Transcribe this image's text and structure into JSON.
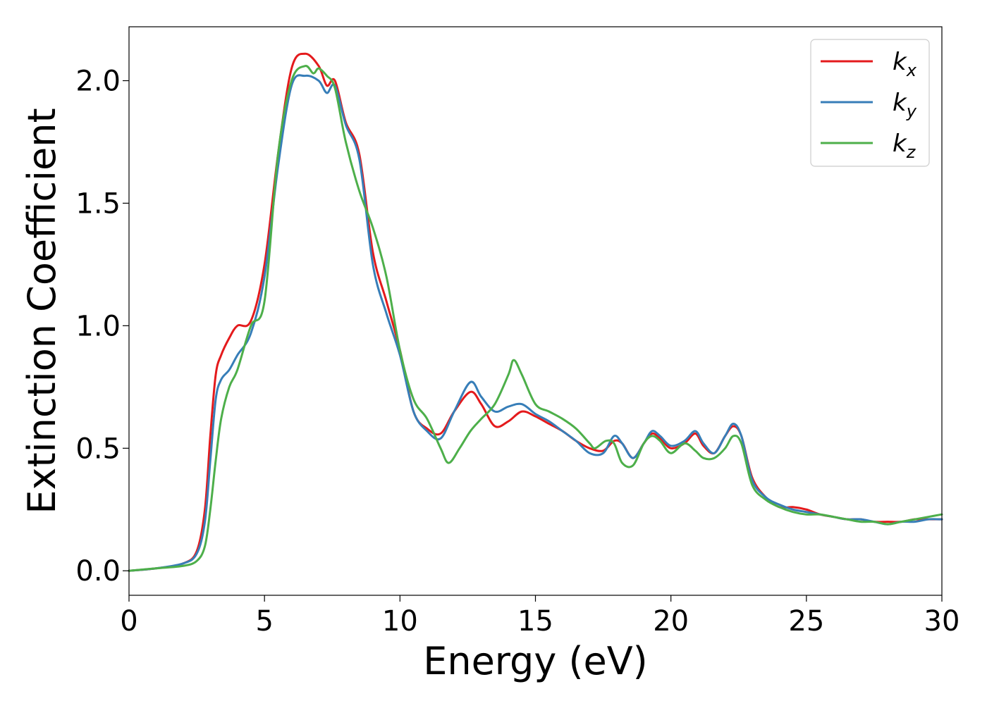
{
  "chart_data": {
    "type": "line",
    "title": "",
    "xlabel": "Energy (eV)",
    "ylabel": "Extinction Coefficient",
    "xlim": [
      0,
      30
    ],
    "ylim": [
      -0.1,
      2.22
    ],
    "xticks": [
      0,
      5,
      10,
      15,
      20,
      25,
      30
    ],
    "xtick_labels": [
      "0",
      "5",
      "10",
      "15",
      "20",
      "25",
      "30"
    ],
    "yticks": [
      0.0,
      0.5,
      1.0,
      1.5,
      2.0
    ],
    "ytick_labels": [
      "0.0",
      "0.5",
      "1.0",
      "1.5",
      "2.0"
    ],
    "grid": false,
    "legend_position": "top-right",
    "series": [
      {
        "name": "k_x",
        "legend_main": "k",
        "legend_sub": "x",
        "color": "#e41a1c",
        "x": [
          0,
          1,
          2,
          2.5,
          2.8,
          3.0,
          3.2,
          3.4,
          3.7,
          4.0,
          4.5,
          5.0,
          5.5,
          6.0,
          6.5,
          7.0,
          7.3,
          7.6,
          8.0,
          8.5,
          9.0,
          9.5,
          10.0,
          10.5,
          11.0,
          11.5,
          12.0,
          12.6,
          13.0,
          13.5,
          14.0,
          14.5,
          15.0,
          15.5,
          16.0,
          16.5,
          17.0,
          17.5,
          17.9,
          18.2,
          18.6,
          19.0,
          19.3,
          19.6,
          20.0,
          20.5,
          20.9,
          21.2,
          21.6,
          22.0,
          22.3,
          22.6,
          23.0,
          23.5,
          24.0,
          24.5,
          25.0,
          25.5,
          26.0,
          26.5,
          27.0,
          27.5,
          28.0,
          28.5,
          29.0,
          29.5,
          30.0
        ],
        "y": [
          0.0,
          0.01,
          0.03,
          0.08,
          0.25,
          0.55,
          0.8,
          0.88,
          0.95,
          1.0,
          1.02,
          1.25,
          1.7,
          2.05,
          2.11,
          2.06,
          1.98,
          2.0,
          1.83,
          1.7,
          1.3,
          1.1,
          0.9,
          0.65,
          0.58,
          0.56,
          0.65,
          0.73,
          0.68,
          0.59,
          0.61,
          0.65,
          0.63,
          0.6,
          0.57,
          0.53,
          0.5,
          0.49,
          0.53,
          0.52,
          0.46,
          0.52,
          0.56,
          0.54,
          0.5,
          0.52,
          0.56,
          0.51,
          0.48,
          0.55,
          0.59,
          0.55,
          0.38,
          0.3,
          0.26,
          0.26,
          0.25,
          0.23,
          0.22,
          0.21,
          0.21,
          0.2,
          0.2,
          0.2,
          0.21,
          0.21,
          0.21
        ]
      },
      {
        "name": "k_y",
        "legend_main": "k",
        "legend_sub": "y",
        "color": "#377eb8",
        "x": [
          0,
          1,
          2,
          2.5,
          2.8,
          3.0,
          3.2,
          3.4,
          3.7,
          4.0,
          4.5,
          5.0,
          5.5,
          6.0,
          6.5,
          7.0,
          7.3,
          7.6,
          8.0,
          8.5,
          9.0,
          9.5,
          10.0,
          10.5,
          11.0,
          11.5,
          12.0,
          12.6,
          13.0,
          13.5,
          14.0,
          14.5,
          15.0,
          15.5,
          16.0,
          16.5,
          17.0,
          17.5,
          17.9,
          18.2,
          18.6,
          19.0,
          19.3,
          19.6,
          20.0,
          20.5,
          20.9,
          21.2,
          21.6,
          22.0,
          22.3,
          22.6,
          23.0,
          23.5,
          24.0,
          24.5,
          25.0,
          25.5,
          26.0,
          26.5,
          27.0,
          27.5,
          28.0,
          28.5,
          29.0,
          29.5,
          30.0
        ],
        "y": [
          0.0,
          0.01,
          0.03,
          0.07,
          0.2,
          0.45,
          0.7,
          0.78,
          0.82,
          0.88,
          0.97,
          1.2,
          1.65,
          1.98,
          2.02,
          2.0,
          1.95,
          1.98,
          1.82,
          1.68,
          1.25,
          1.05,
          0.88,
          0.65,
          0.57,
          0.54,
          0.65,
          0.77,
          0.71,
          0.65,
          0.67,
          0.68,
          0.64,
          0.61,
          0.57,
          0.53,
          0.48,
          0.48,
          0.55,
          0.52,
          0.46,
          0.52,
          0.57,
          0.55,
          0.51,
          0.53,
          0.57,
          0.52,
          0.48,
          0.55,
          0.6,
          0.55,
          0.37,
          0.3,
          0.27,
          0.25,
          0.24,
          0.23,
          0.22,
          0.21,
          0.21,
          0.2,
          0.19,
          0.2,
          0.2,
          0.21,
          0.21
        ]
      },
      {
        "name": "k_z",
        "legend_main": "k",
        "legend_sub": "z",
        "color": "#4daf4a",
        "x": [
          0,
          1,
          2,
          2.5,
          2.8,
          3.0,
          3.2,
          3.4,
          3.7,
          4.0,
          4.5,
          5.0,
          5.5,
          6.0,
          6.5,
          6.8,
          7.0,
          7.3,
          7.6,
          8.0,
          8.5,
          9.0,
          9.5,
          10.0,
          10.5,
          11.0,
          11.5,
          11.8,
          12.2,
          12.6,
          13.0,
          13.5,
          14.0,
          14.2,
          14.5,
          15.0,
          15.5,
          16.0,
          16.5,
          17.0,
          17.2,
          17.6,
          17.9,
          18.2,
          18.6,
          19.0,
          19.3,
          19.6,
          20.0,
          20.5,
          20.9,
          21.2,
          21.6,
          22.0,
          22.3,
          22.6,
          23.0,
          23.5,
          24.0,
          24.5,
          25.0,
          25.5,
          26.0,
          26.5,
          27.0,
          27.5,
          28.0,
          28.5,
          29.0,
          29.5,
          30.0
        ],
        "y": [
          0.0,
          0.01,
          0.02,
          0.04,
          0.1,
          0.25,
          0.45,
          0.62,
          0.75,
          0.82,
          1.0,
          1.1,
          1.7,
          2.0,
          2.06,
          2.03,
          2.05,
          2.02,
          1.97,
          1.75,
          1.55,
          1.4,
          1.2,
          0.9,
          0.7,
          0.62,
          0.5,
          0.44,
          0.5,
          0.57,
          0.62,
          0.68,
          0.8,
          0.86,
          0.8,
          0.68,
          0.65,
          0.62,
          0.58,
          0.52,
          0.5,
          0.53,
          0.52,
          0.44,
          0.43,
          0.52,
          0.55,
          0.53,
          0.48,
          0.52,
          0.49,
          0.46,
          0.46,
          0.5,
          0.55,
          0.52,
          0.35,
          0.29,
          0.26,
          0.24,
          0.23,
          0.23,
          0.22,
          0.21,
          0.2,
          0.2,
          0.19,
          0.2,
          0.21,
          0.22,
          0.23
        ]
      }
    ]
  }
}
